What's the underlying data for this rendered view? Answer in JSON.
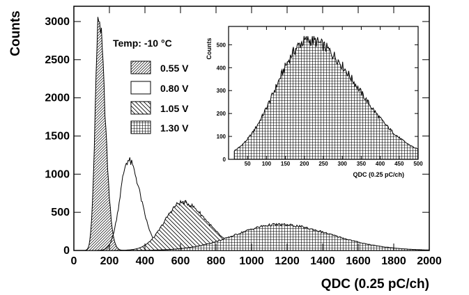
{
  "chart_data": [
    {
      "type": "area",
      "title": "",
      "xlabel": "QDC (0.25 pC/ch)",
      "ylabel": "Counts",
      "xlim": [
        0,
        2000
      ],
      "ylim": [
        0,
        3200
      ],
      "x_ticks": [
        "0",
        "200",
        "400",
        "600",
        "800",
        "1000",
        "1200",
        "1400",
        "1600",
        "1800",
        "2000"
      ],
      "y_ticks": [
        "0",
        "500",
        "1000",
        "1500",
        "2000",
        "2500",
        "3000"
      ],
      "legend_title": "Temp: -10 °C",
      "legend_position": "top-left",
      "series": [
        {
          "name": "0.55 V",
          "fill": "diagonal-up",
          "peak_x": 140,
          "peak_y": 3050,
          "width_left": 20,
          "width_right": 35,
          "start_x": 65
        },
        {
          "name": "0.80 V",
          "fill": "none",
          "peak_x": 305,
          "peak_y": 1180,
          "width_left": 45,
          "width_right": 70,
          "start_x": 90
        },
        {
          "name": "1.05 V",
          "fill": "diagonal-down",
          "peak_x": 610,
          "peak_y": 630,
          "width_left": 100,
          "width_right": 140,
          "start_x": 150
        },
        {
          "name": "1.30 V",
          "fill": "grid",
          "peak_x": 1150,
          "peak_y": 340,
          "width_left": 240,
          "width_right": 300,
          "start_x": 300
        }
      ]
    },
    {
      "type": "area",
      "title": "",
      "xlabel": "QDC (0.25 pC/ch)",
      "ylabel": "Counts",
      "xlim": [
        0,
        500
      ],
      "ylim": [
        0,
        580
      ],
      "x_ticks": [
        "50",
        "100",
        "150",
        "200",
        "250",
        "300",
        "350",
        "400",
        "450",
        "500"
      ],
      "y_ticks": [
        "0",
        "100",
        "200",
        "300",
        "400",
        "500"
      ],
      "series": [
        {
          "name": "",
          "fill": "grid",
          "peak_x": 210,
          "peak_y": 520,
          "width_left": 85,
          "width_right": 130,
          "start_x": 15
        }
      ]
    }
  ]
}
